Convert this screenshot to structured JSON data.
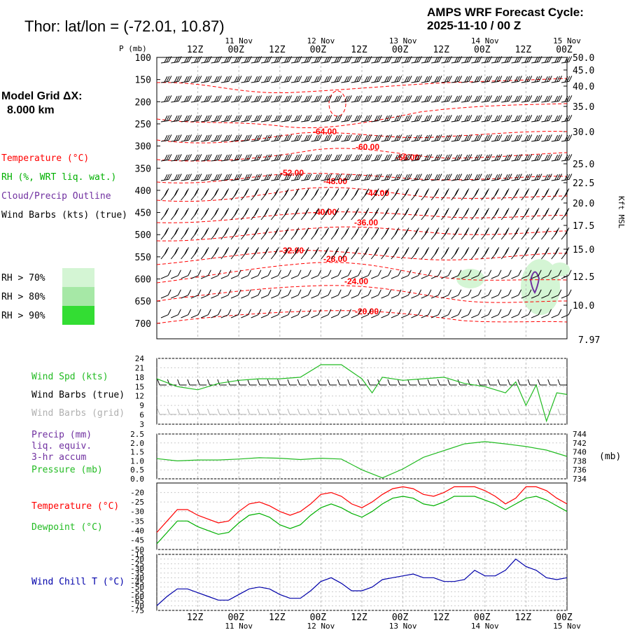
{
  "title": "Thor:  lat/lon = (-72.01,  10.87)",
  "cycle": {
    "line1": "AMPS WRF Forecast Cycle:",
    "line2": "2025-11-10 / 00  Z"
  },
  "model_grid": {
    "line1": "Model Grid ΔX:",
    "line2": "8.000 km"
  },
  "time_axis": {
    "ticks": [
      "12Z",
      "00Z",
      "12Z",
      "00Z",
      "12Z",
      "00Z",
      "12Z",
      "00Z",
      "12Z",
      "00Z"
    ],
    "dates": [
      "11 Nov",
      "12 Nov",
      "13 Nov",
      "14 Nov",
      "15 Nov"
    ]
  },
  "colors": {
    "temp": "#ff0000",
    "rh": "#00b000",
    "cloud": "#7030a0",
    "barb": "#000000",
    "grid_barb": "#b0b0b0",
    "wspd": "#22bb22",
    "pressure": "#22bb22",
    "chill": "#0000aa",
    "rh70": "#d4f5d4",
    "rh80": "#a6e8a6",
    "rh90": "#33dd33"
  },
  "upper": {
    "p_axis_label": "P (mb)",
    "kft_label": "Kft MSL",
    "legend": {
      "temperature": "Temperature (°C)",
      "rh": "RH (%, WRT liq. wat.)",
      "cloud": "Cloud/Precip Outline",
      "barbs": "Wind Barbs (kts) (true)"
    },
    "rh_legend": [
      "RH > 70%",
      "RH > 80%",
      "RH > 90%"
    ],
    "bottom_right_label": "7.97"
  },
  "chart_data": [
    {
      "type": "line",
      "name": "upper-air time-height section",
      "pressure_levels": [
        100,
        150,
        200,
        250,
        300,
        350,
        400,
        450,
        500,
        550,
        600,
        650,
        700
      ],
      "ylim": [
        735,
        100
      ],
      "height_kft": [
        50.0,
        45.0,
        40.0,
        35.0,
        30.0,
        25.0,
        22.5,
        20.0,
        17.5,
        15.0,
        12.5,
        10.0
      ],
      "height_tick_labels": [
        "50.0",
        "45.0",
        "40.0",
        "35.0",
        "30.0",
        "25.0",
        "22.5",
        "20.0",
        "17.5",
        "15.0",
        "12.5",
        "10.0"
      ],
      "temperature_contour_labels": [
        "-64.00",
        "-60.00",
        "-56.00",
        "-52.00",
        "-48.00",
        "-44.00",
        "-40.00",
        "-36.00",
        "-32.00",
        "-28.00",
        "-24.00",
        "-20.00"
      ],
      "xlim_hours": [
        0,
        120
      ],
      "xlabel": "",
      "ylabel": "P (mb)"
    },
    {
      "type": "line",
      "name": "wind speed",
      "ylabel": "Wind Spd (kts)",
      "ylim": [
        3,
        24
      ],
      "y_ticks": [
        3,
        6,
        9,
        12,
        15,
        18,
        21,
        24
      ],
      "legend": [
        "Wind Spd (kts)",
        "Wind Barbs (true)",
        "Wind Barbs (grid)"
      ],
      "x_hours": [
        0,
        6,
        12,
        18,
        24,
        30,
        36,
        42,
        48,
        54,
        60,
        63,
        66,
        72,
        78,
        84,
        90,
        96,
        102,
        105,
        108,
        111,
        114,
        117,
        120
      ],
      "values": [
        17.5,
        15,
        14,
        16,
        17,
        17.5,
        17.5,
        18,
        22,
        22,
        17.5,
        13,
        18,
        17,
        17.5,
        18,
        16,
        15,
        13,
        16.5,
        9,
        15.5,
        4,
        13,
        12.5
      ]
    },
    {
      "type": "line",
      "name": "precip and pressure",
      "legend": [
        "Precip (mm)",
        "liq. equiv.",
        "3-hr accum",
        "Pressure (mb)"
      ],
      "left_ylim": [
        0.0,
        2.5
      ],
      "left_ticks": [
        "0.0",
        "0.5",
        "1.0",
        "1.5",
        "2.0",
        "2.5"
      ],
      "right_ylim": [
        734,
        744
      ],
      "right_ticks": [
        "734",
        "736",
        "738",
        "740",
        "742",
        "744"
      ],
      "right_unit": "(mb)",
      "x_hours": [
        0,
        6,
        12,
        18,
        24,
        30,
        36,
        42,
        48,
        54,
        60,
        66,
        72,
        78,
        84,
        90,
        96,
        102,
        108,
        114,
        120
      ],
      "pressure": [
        738.5,
        738,
        738.2,
        738.2,
        738.4,
        738.7,
        738.6,
        738.3,
        738.6,
        738.4,
        736,
        734.2,
        736.2,
        738.8,
        740.3,
        741.8,
        742.3,
        741.8,
        741.2,
        740.4,
        739
      ],
      "precip": [
        0,
        0,
        0,
        0,
        0,
        0,
        0,
        0,
        0,
        0,
        0,
        0,
        0,
        0,
        0,
        0,
        0,
        0,
        0,
        0,
        0
      ]
    },
    {
      "type": "line",
      "name": "temperature and dewpoint",
      "legend": [
        "Temperature (°C)",
        "Dewpoint (°C)"
      ],
      "ylim": [
        -50,
        -15
      ],
      "y_ticks": [
        "-50",
        "-45",
        "-40",
        "-35",
        "-30",
        "-25",
        "-20"
      ],
      "x_hours": [
        0,
        3,
        6,
        9,
        12,
        15,
        18,
        21,
        24,
        27,
        30,
        33,
        36,
        39,
        42,
        45,
        48,
        51,
        54,
        57,
        60,
        63,
        66,
        69,
        72,
        75,
        78,
        81,
        84,
        87,
        90,
        93,
        96,
        99,
        102,
        105,
        108,
        111,
        114,
        117,
        120
      ],
      "series": [
        {
          "name": "Temperature",
          "values": [
            -41,
            -35,
            -29,
            -29,
            -32,
            -34,
            -36,
            -35,
            -30,
            -26,
            -25,
            -27,
            -30,
            -32,
            -30,
            -26,
            -21,
            -20,
            -22,
            -26,
            -28,
            -25,
            -21,
            -18,
            -17,
            -18,
            -21,
            -22,
            -20,
            -17,
            -17,
            -17,
            -19,
            -22,
            -26,
            -23,
            -17,
            -17,
            -19,
            -23,
            -26
          ]
        },
        {
          "name": "Dewpoint",
          "values": [
            -47,
            -41,
            -35,
            -35,
            -38,
            -40,
            -42,
            -41,
            -36,
            -32,
            -31,
            -33,
            -37,
            -39,
            -37,
            -32,
            -28,
            -26,
            -28,
            -31,
            -33,
            -30,
            -26,
            -23,
            -22,
            -23,
            -26,
            -27,
            -25,
            -22,
            -22,
            -22,
            -24,
            -26,
            -29,
            -26,
            -23,
            -22,
            -24,
            -27,
            -30
          ]
        }
      ]
    },
    {
      "type": "line",
      "name": "wind chill",
      "legend": [
        "Wind Chill T (°C)"
      ],
      "ylim": [
        -75,
        -15
      ],
      "y_ticks": [
        "-75",
        "-70",
        "-65",
        "-60",
        "-55",
        "-50",
        "-45",
        "-40",
        "-35",
        "-30",
        "-25",
        "-20",
        "-15"
      ],
      "x_hours": [
        0,
        3,
        6,
        9,
        12,
        15,
        18,
        21,
        24,
        27,
        30,
        33,
        36,
        39,
        42,
        45,
        48,
        51,
        54,
        57,
        60,
        63,
        66,
        69,
        72,
        75,
        78,
        81,
        84,
        87,
        90,
        93,
        96,
        99,
        102,
        105,
        108,
        111,
        114,
        117,
        120
      ],
      "values": [
        -70,
        -60,
        -52,
        -52,
        -56,
        -60,
        -64,
        -64,
        -58,
        -52,
        -50,
        -52,
        -58,
        -62,
        -62,
        -54,
        -44,
        -40,
        -46,
        -54,
        -54,
        -50,
        -42,
        -40,
        -38,
        -36,
        -40,
        -40,
        -44,
        -44,
        -42,
        -32,
        -38,
        -38,
        -32,
        -20,
        -28,
        -32,
        -40,
        -42,
        -40
      ]
    }
  ]
}
